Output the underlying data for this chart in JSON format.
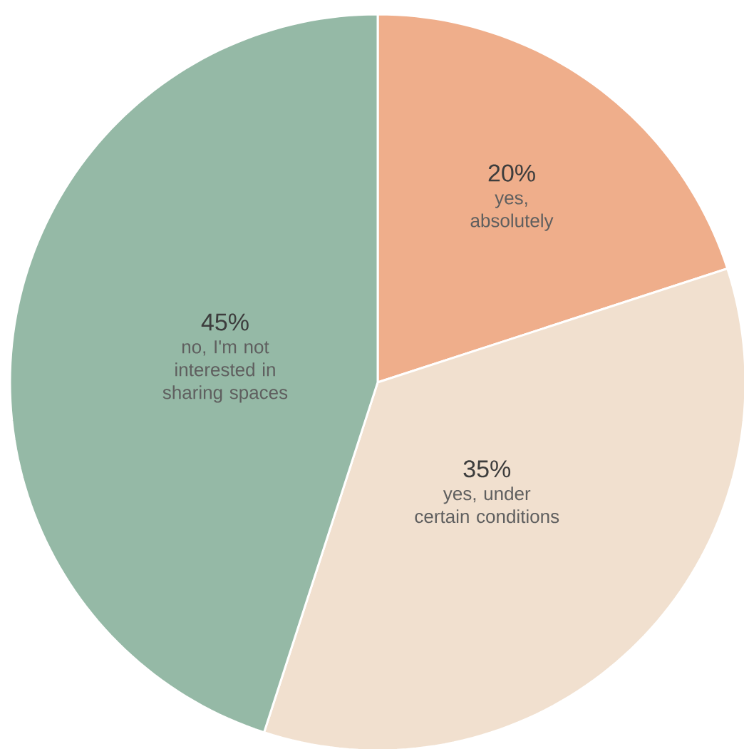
{
  "chart_data": {
    "type": "pie",
    "categories": [
      "yes, absolutely",
      "yes, under certain conditions",
      "no, I'm not interested in sharing spaces"
    ],
    "values": [
      20,
      35,
      45
    ],
    "value_labels": [
      "20%",
      "35%",
      "45%"
    ],
    "colors": [
      "#efae8b",
      "#f1e0cf",
      "#95b9a6"
    ]
  }
}
